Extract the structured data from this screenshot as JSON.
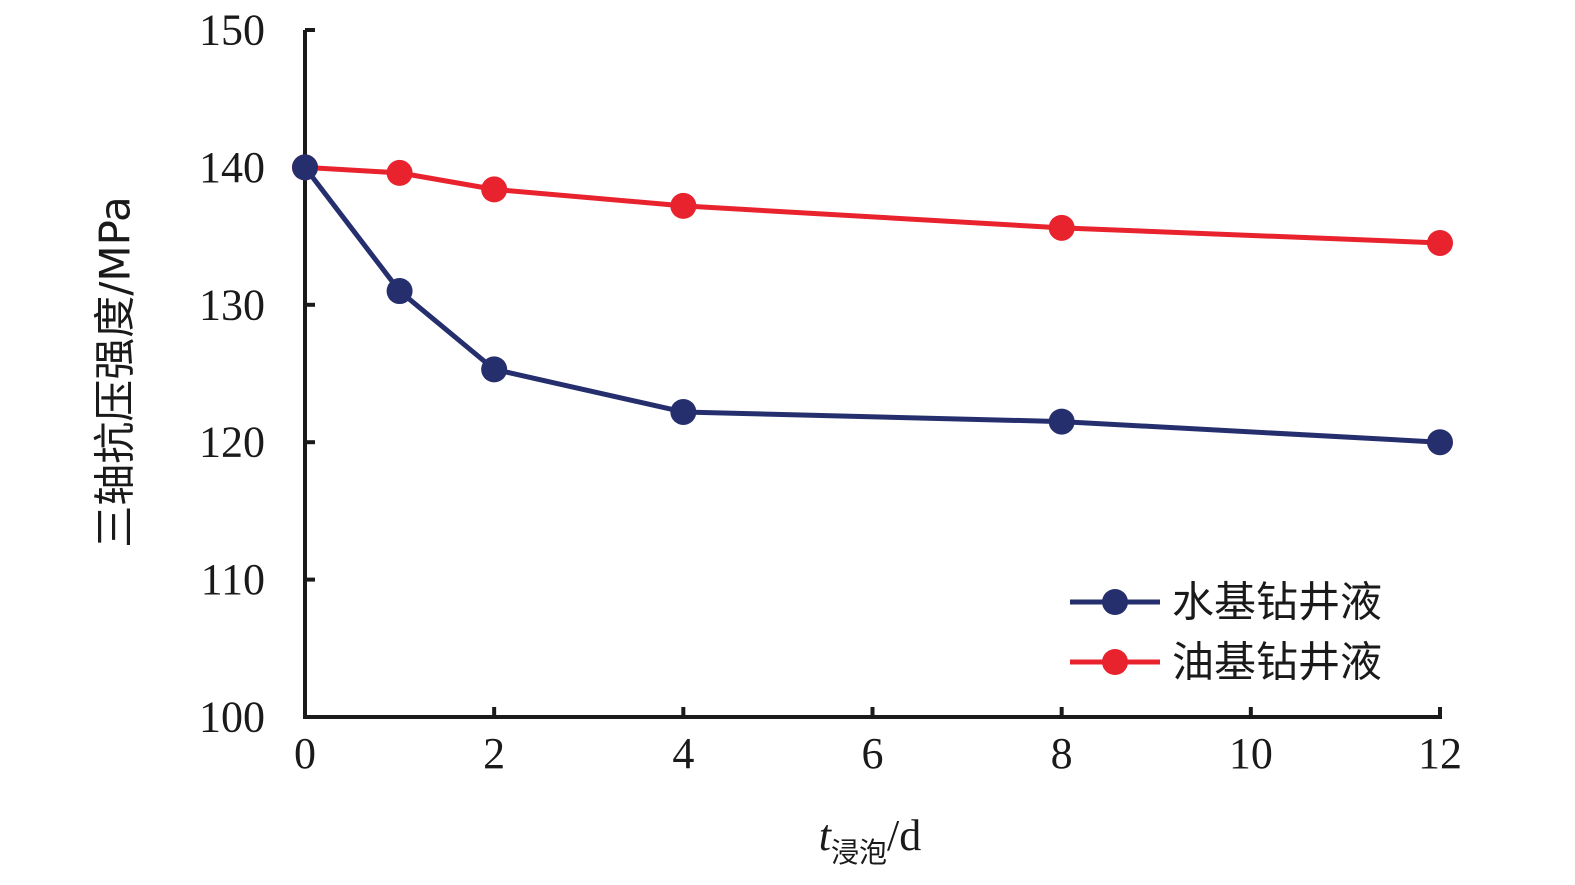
{
  "chart_data": {
    "type": "line",
    "x": [
      0,
      1,
      2,
      4,
      8,
      12
    ],
    "series": [
      {
        "name": "水基钻井液",
        "color": "#262f6e",
        "values": [
          140.0,
          131.0,
          125.3,
          122.2,
          121.5,
          120.0
        ]
      },
      {
        "name": "油基钻井液",
        "color": "#e8232e",
        "values": [
          140.0,
          139.6,
          138.4,
          137.2,
          135.6,
          134.5
        ]
      }
    ],
    "xlabel": {
      "main": "t",
      "sub": "浸泡",
      "unit": "/d"
    },
    "ylabel": "三轴抗压强度/MPa",
    "xlim": [
      0,
      12
    ],
    "ylim": [
      100,
      150
    ],
    "xticks": [
      0,
      2,
      4,
      6,
      8,
      10,
      12
    ],
    "yticks": [
      100,
      110,
      120,
      130,
      140,
      150
    ],
    "grid": false,
    "legend_position": "bottom-right"
  }
}
